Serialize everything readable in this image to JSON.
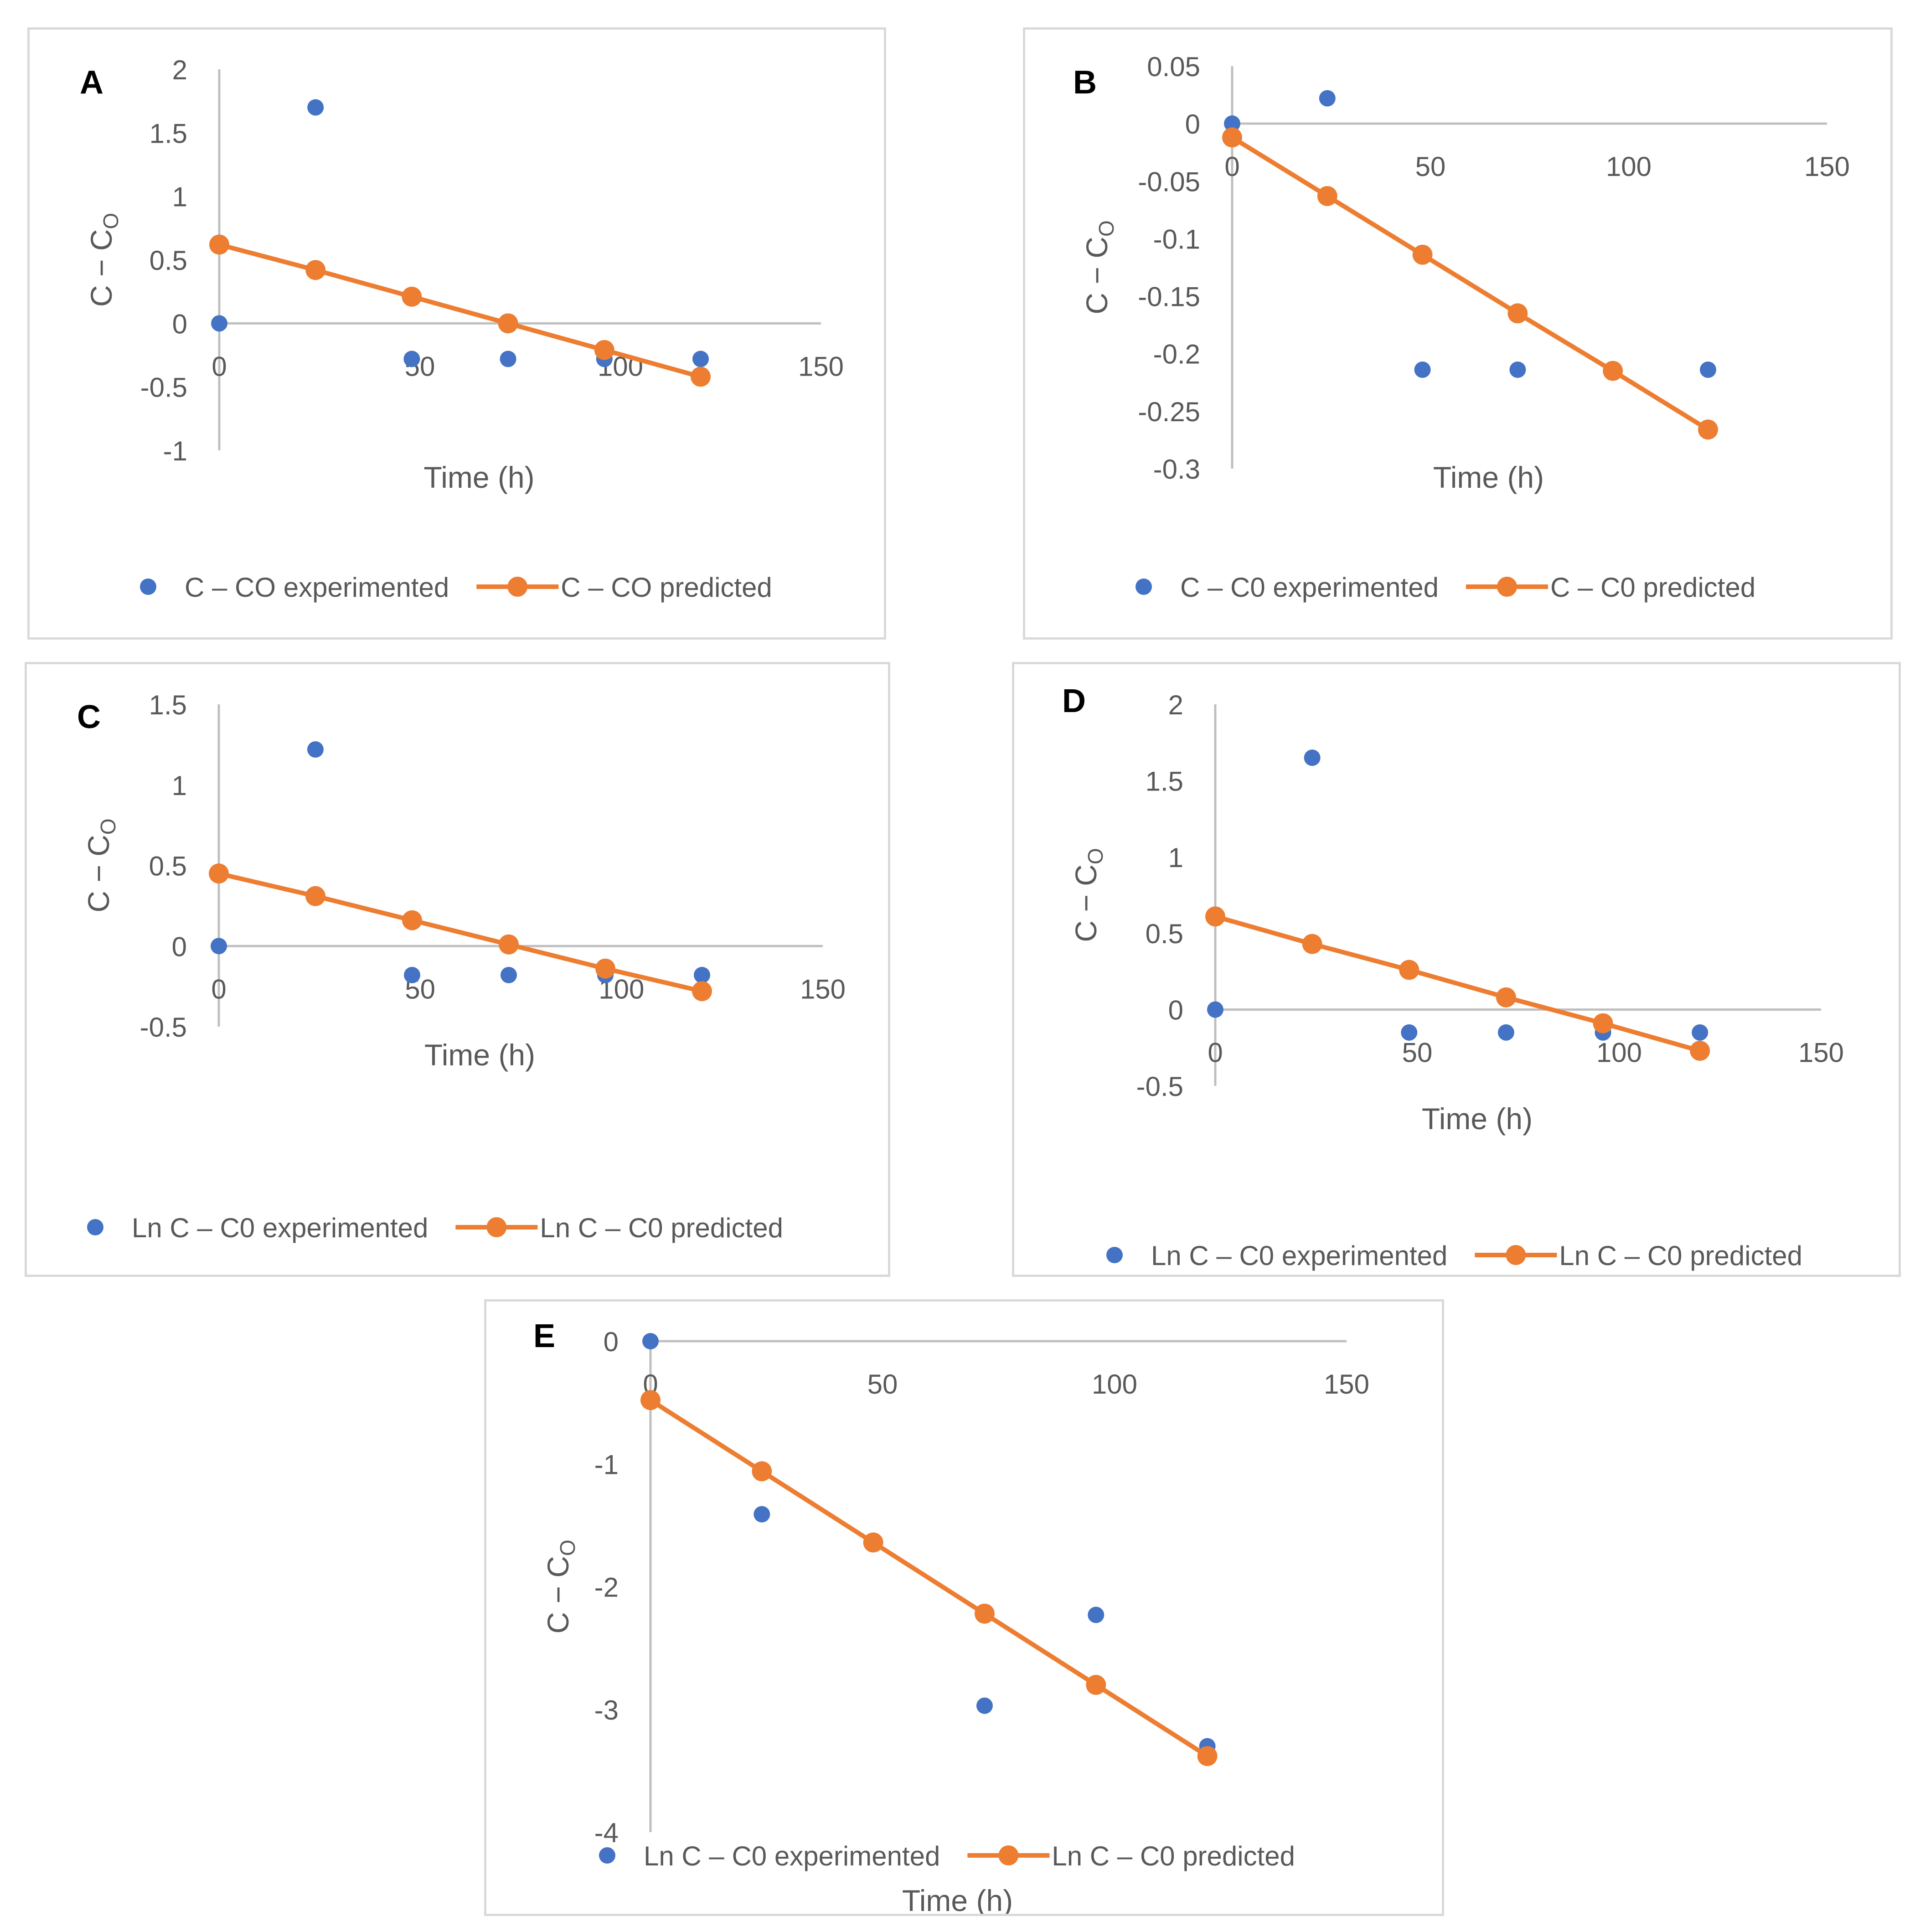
{
  "colors": {
    "experimented": "#4472c4",
    "predicted": "#ed7d31",
    "axis": "#bfbfbf",
    "text": "#595959",
    "border": "#d9d9d9"
  },
  "chart_data": [
    {
      "panel": "A",
      "type": "scatter",
      "ylabel_main": "C − C",
      "ylabel_sub": "O",
      "xlabel": "Time (h)",
      "xlim": [
        0,
        150
      ],
      "ylim": [
        -1,
        2
      ],
      "xticks": [
        "0",
        "50",
        "100",
        "150"
      ],
      "yticks": [
        "-1",
        "-0.5",
        "0",
        "0.5",
        "1",
        "1.5",
        "2"
      ],
      "legend_position": "bottom",
      "series": [
        {
          "name": "C – CO experimented",
          "kind": "scatter",
          "x": [
            0,
            24,
            48,
            72,
            96,
            120
          ],
          "y": [
            0,
            1.7,
            -0.28,
            -0.28,
            -0.28,
            -0.28
          ]
        },
        {
          "name": "C – CO predicted",
          "kind": "line-markers",
          "x": [
            0,
            24,
            48,
            72,
            96,
            120
          ],
          "y": [
            0.62,
            0.42,
            0.21,
            0.0,
            -0.21,
            -0.42
          ]
        }
      ]
    },
    {
      "panel": "B",
      "type": "scatter",
      "ylabel_main": "C − C",
      "ylabel_sub": "O",
      "xlabel": "Time (h)",
      "xlim": [
        0,
        150
      ],
      "ylim": [
        -0.3,
        0.05
      ],
      "xticks": [
        "0",
        "50",
        "100",
        "150"
      ],
      "yticks": [
        "-0.3",
        "-0.25",
        "-0.2",
        "-0.15",
        "-0.1",
        "-0.05",
        "0",
        "0.05"
      ],
      "legend_position": "bottom",
      "series": [
        {
          "name": "C – C0 experimented",
          "kind": "scatter",
          "x": [
            0,
            24,
            48,
            72,
            96,
            120
          ],
          "y": [
            0,
            0.022,
            -0.214,
            -0.214,
            -0.214,
            -0.214
          ]
        },
        {
          "name": "C – C0 predicted",
          "kind": "line-markers",
          "x": [
            0,
            24,
            48,
            72,
            96,
            120
          ],
          "y": [
            -0.012,
            -0.063,
            -0.114,
            -0.165,
            -0.215,
            -0.266
          ]
        }
      ]
    },
    {
      "panel": "C",
      "type": "scatter",
      "ylabel_main": "C − C",
      "ylabel_sub": "O",
      "xlabel": "Time (h)",
      "xlim": [
        0,
        150
      ],
      "ylim": [
        -0.5,
        1.5
      ],
      "xticks": [
        "0",
        "50",
        "100",
        "150"
      ],
      "yticks": [
        "-0.5",
        "0",
        "0.5",
        "1",
        "1.5"
      ],
      "legend_position": "bottom",
      "series": [
        {
          "name": "Ln C – C0 experimented",
          "kind": "scatter",
          "x": [
            0,
            24,
            48,
            72,
            96,
            120
          ],
          "y": [
            0,
            1.22,
            -0.18,
            -0.18,
            -0.18,
            -0.18
          ]
        },
        {
          "name": "Ln C – C0 predicted",
          "kind": "line-markers",
          "x": [
            0,
            24,
            48,
            72,
            96,
            120
          ],
          "y": [
            0.45,
            0.31,
            0.16,
            0.01,
            -0.14,
            -0.28
          ]
        }
      ]
    },
    {
      "panel": "D",
      "type": "scatter",
      "ylabel_main": "C − C",
      "ylabel_sub": "O",
      "xlabel": "Time (h)",
      "xlim": [
        0,
        150
      ],
      "ylim": [
        -0.5,
        2
      ],
      "xticks": [
        "0",
        "50",
        "100",
        "150"
      ],
      "yticks": [
        "-0.5",
        "0",
        "0.5",
        "1",
        "1.5",
        "2"
      ],
      "legend_position": "bottom",
      "series": [
        {
          "name": "Ln C – C0 experimented",
          "kind": "scatter",
          "x": [
            0,
            24,
            48,
            72,
            96,
            120
          ],
          "y": [
            0,
            1.65,
            -0.15,
            -0.15,
            -0.15,
            -0.15
          ]
        },
        {
          "name": "Ln C – C0 predicted",
          "kind": "line-markers",
          "x": [
            0,
            24,
            48,
            72,
            96,
            120
          ],
          "y": [
            0.61,
            0.43,
            0.26,
            0.08,
            -0.09,
            -0.27
          ]
        }
      ]
    },
    {
      "panel": "E",
      "type": "scatter",
      "ylabel_main": "C − C",
      "ylabel_sub": "O",
      "xlabel": "Time (h)",
      "xlim": [
        0,
        150
      ],
      "ylim": [
        -4,
        0
      ],
      "xticks": [
        "0",
        "50",
        "100",
        "150"
      ],
      "yticks": [
        "-4",
        "-3",
        "-2",
        "-1",
        "0"
      ],
      "legend_position": "bottom",
      "series": [
        {
          "name": "Ln C – C0 experimented",
          "kind": "scatter",
          "x": [
            0,
            24,
            48,
            72,
            96,
            120
          ],
          "y": [
            0,
            -1.41,
            -1.65,
            -2.97,
            -2.23,
            -3.3
          ]
        },
        {
          "name": "Ln C – C0 predicted",
          "kind": "line-markers",
          "x": [
            0,
            24,
            48,
            72,
            96,
            120
          ],
          "y": [
            -0.48,
            -1.06,
            -1.64,
            -2.22,
            -2.8,
            -3.38
          ]
        }
      ]
    }
  ]
}
